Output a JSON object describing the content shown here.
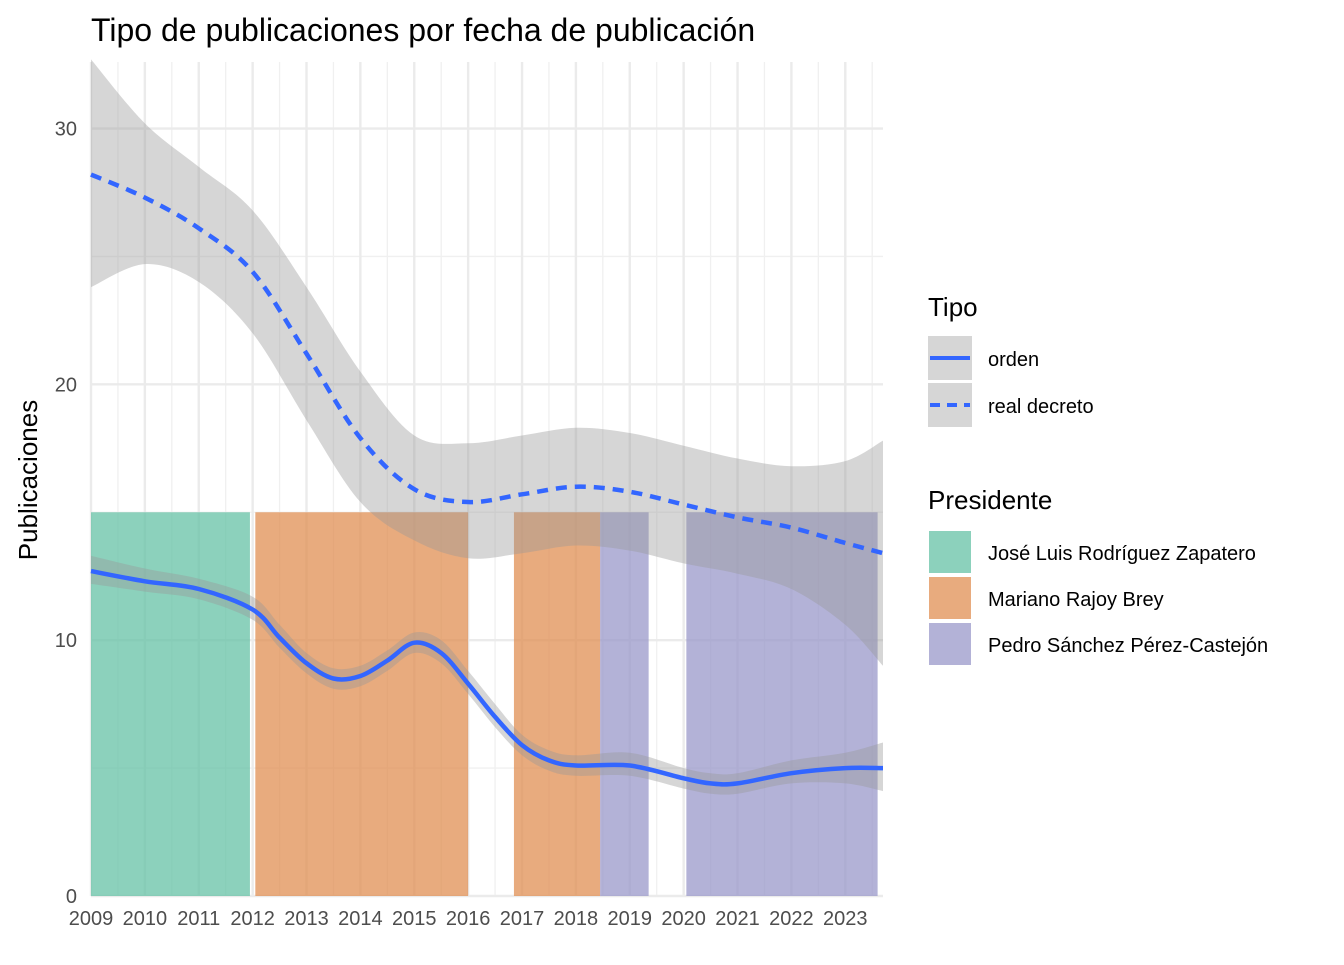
{
  "chart_data": {
    "type": "line",
    "title": "Tipo de publicaciones por fecha de publicación",
    "xlabel": "",
    "ylabel": "Publicaciones",
    "x_ticks": [
      "2009",
      "2010",
      "2011",
      "2012",
      "2013",
      "2014",
      "2015",
      "2016",
      "2017",
      "2018",
      "2019",
      "2020",
      "2021",
      "2022",
      "2023"
    ],
    "y_ticks": [
      0,
      10,
      20,
      30
    ],
    "xlim": [
      2009.0,
      2023.7
    ],
    "ylim": [
      0,
      32.6
    ],
    "grid": true,
    "legend_placement": "right",
    "smooth_color": "#3366ff",
    "ribbon_color": "#999999",
    "series": [
      {
        "name": "orden",
        "linetype": "solid",
        "points": [
          {
            "x": 2009.0,
            "y": 12.7,
            "lo": 12.2,
            "hi": 13.3
          },
          {
            "x": 2010.0,
            "y": 12.3,
            "lo": 11.9,
            "hi": 12.8
          },
          {
            "x": 2011.0,
            "y": 12.0,
            "lo": 11.6,
            "hi": 12.4
          },
          {
            "x": 2012.0,
            "y": 11.2,
            "lo": 10.8,
            "hi": 11.7
          },
          {
            "x": 2012.5,
            "y": 10.1,
            "lo": 9.7,
            "hi": 10.6
          },
          {
            "x": 2013.0,
            "y": 9.1,
            "lo": 8.7,
            "hi": 9.5
          },
          {
            "x": 2013.5,
            "y": 8.5,
            "lo": 8.1,
            "hi": 8.9
          },
          {
            "x": 2014.0,
            "y": 8.6,
            "lo": 8.2,
            "hi": 9.0
          },
          {
            "x": 2014.5,
            "y": 9.2,
            "lo": 8.8,
            "hi": 9.6
          },
          {
            "x": 2015.0,
            "y": 9.9,
            "lo": 9.5,
            "hi": 10.3
          },
          {
            "x": 2015.5,
            "y": 9.5,
            "lo": 9.1,
            "hi": 10.0
          },
          {
            "x": 2016.0,
            "y": 8.3,
            "lo": 7.9,
            "hi": 8.8
          },
          {
            "x": 2016.5,
            "y": 7.0,
            "lo": 6.6,
            "hi": 7.5
          },
          {
            "x": 2017.0,
            "y": 5.9,
            "lo": 5.5,
            "hi": 6.3
          },
          {
            "x": 2017.5,
            "y": 5.3,
            "lo": 4.9,
            "hi": 5.7
          },
          {
            "x": 2018.0,
            "y": 5.1,
            "lo": 4.7,
            "hi": 5.5
          },
          {
            "x": 2019.0,
            "y": 5.1,
            "lo": 4.7,
            "hi": 5.6
          },
          {
            "x": 2020.0,
            "y": 4.6,
            "lo": 4.2,
            "hi": 5.0
          },
          {
            "x": 2020.5,
            "y": 4.4,
            "lo": 4.0,
            "hi": 4.8
          },
          {
            "x": 2021.0,
            "y": 4.4,
            "lo": 4.0,
            "hi": 4.8
          },
          {
            "x": 2022.0,
            "y": 4.8,
            "lo": 4.4,
            "hi": 5.3
          },
          {
            "x": 2023.0,
            "y": 5.0,
            "lo": 4.4,
            "hi": 5.6
          },
          {
            "x": 2023.7,
            "y": 5.0,
            "lo": 4.1,
            "hi": 6.0
          }
        ]
      },
      {
        "name": "real decreto",
        "linetype": "dashed",
        "points": [
          {
            "x": 2009.0,
            "y": 28.2,
            "lo": 23.8,
            "hi": 32.7
          },
          {
            "x": 2010.0,
            "y": 27.3,
            "lo": 24.7,
            "hi": 30.2
          },
          {
            "x": 2011.0,
            "y": 26.1,
            "lo": 24.0,
            "hi": 28.5
          },
          {
            "x": 2012.0,
            "y": 24.4,
            "lo": 22.0,
            "hi": 26.8
          },
          {
            "x": 2013.0,
            "y": 21.2,
            "lo": 18.6,
            "hi": 23.8
          },
          {
            "x": 2014.0,
            "y": 17.9,
            "lo": 15.4,
            "hi": 20.5
          },
          {
            "x": 2015.0,
            "y": 15.9,
            "lo": 13.9,
            "hi": 18.0
          },
          {
            "x": 2016.0,
            "y": 15.4,
            "lo": 13.2,
            "hi": 17.7
          },
          {
            "x": 2017.0,
            "y": 15.7,
            "lo": 13.4,
            "hi": 18.0
          },
          {
            "x": 2018.0,
            "y": 16.0,
            "lo": 13.7,
            "hi": 18.3
          },
          {
            "x": 2019.0,
            "y": 15.8,
            "lo": 13.5,
            "hi": 18.1
          },
          {
            "x": 2020.0,
            "y": 15.3,
            "lo": 13.0,
            "hi": 17.6
          },
          {
            "x": 2021.0,
            "y": 14.8,
            "lo": 12.6,
            "hi": 17.1
          },
          {
            "x": 2022.0,
            "y": 14.4,
            "lo": 12.0,
            "hi": 16.8
          },
          {
            "x": 2023.0,
            "y": 13.8,
            "lo": 10.6,
            "hi": 17.0
          },
          {
            "x": 2023.7,
            "y": 13.4,
            "lo": 9.0,
            "hi": 17.8
          }
        ]
      }
    ],
    "periods": [
      {
        "presidente": "José Luis Rodríguez Zapatero",
        "start": 2009.0,
        "end": 2011.95,
        "value": 15,
        "color": "#66c2a5"
      },
      {
        "presidente": "Mariano Rajoy Brey",
        "start": 2012.05,
        "end": 2016.0,
        "value": 15,
        "color": "#e08f53"
      },
      {
        "presidente": "Mariano Rajoy Brey",
        "start": 2016.85,
        "end": 2018.45,
        "value": 15,
        "color": "#e08f53"
      },
      {
        "presidente": "Pedro Sánchez Pérez-Castejón",
        "start": 2018.45,
        "end": 2019.35,
        "value": 15,
        "color": "#9a98c9"
      },
      {
        "presidente": "Pedro Sánchez Pérez-Castejón",
        "start": 2020.05,
        "end": 2023.6,
        "value": 15,
        "color": "#9a98c9"
      }
    ]
  },
  "legend": {
    "tipo": {
      "title": "Tipo",
      "items": [
        {
          "label": "orden",
          "linetype": "solid"
        },
        {
          "label": "real decreto",
          "linetype": "dashed"
        }
      ]
    },
    "presidente": {
      "title": "Presidente",
      "items": [
        {
          "label": "José Luis Rodríguez Zapatero",
          "color": "#66c2a5"
        },
        {
          "label": "Mariano Rajoy Brey",
          "color": "#e08f53"
        },
        {
          "label": "Pedro Sánchez Pérez-Castejón",
          "color": "#9a98c9"
        }
      ]
    }
  }
}
